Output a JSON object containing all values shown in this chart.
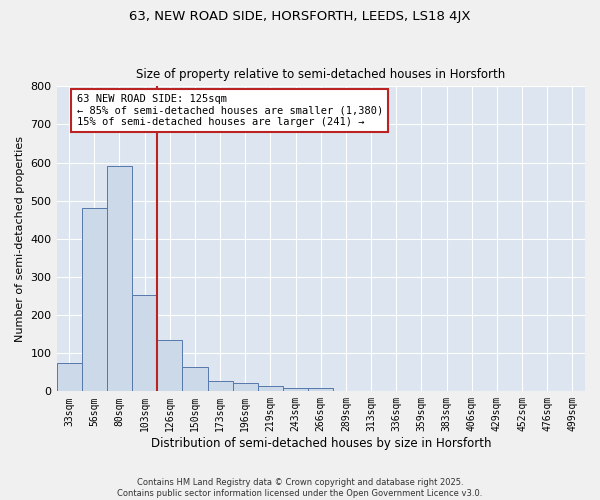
{
  "title1": "63, NEW ROAD SIDE, HORSFORTH, LEEDS, LS18 4JX",
  "title2": "Size of property relative to semi-detached houses in Horsforth",
  "xlabel": "Distribution of semi-detached houses by size in Horsforth",
  "ylabel": "Number of semi-detached properties",
  "categories": [
    "33sqm",
    "56sqm",
    "80sqm",
    "103sqm",
    "126sqm",
    "150sqm",
    "173sqm",
    "196sqm",
    "219sqm",
    "243sqm",
    "266sqm",
    "289sqm",
    "313sqm",
    "336sqm",
    "359sqm",
    "383sqm",
    "406sqm",
    "429sqm",
    "452sqm",
    "476sqm",
    "499sqm"
  ],
  "values": [
    75,
    480,
    590,
    253,
    135,
    65,
    28,
    22,
    13,
    10,
    10,
    0,
    0,
    0,
    0,
    0,
    0,
    0,
    0,
    0,
    0
  ],
  "bar_color": "#ccd9e8",
  "bar_edge_color": "#5577aa",
  "vline_color": "#bb2222",
  "annotation_line1": "63 NEW ROAD SIDE: 125sqm",
  "annotation_line2": "← 85% of semi-detached houses are smaller (1,380)",
  "annotation_line3": "15% of semi-detached houses are larger (241) →",
  "annotation_box_color": "#ffffff",
  "annotation_box_edge": "#bb2222",
  "ylim": [
    0,
    800
  ],
  "yticks": [
    0,
    100,
    200,
    300,
    400,
    500,
    600,
    700,
    800
  ],
  "background_color": "#dde6f0",
  "grid_color": "#ffffff",
  "fig_bg": "#f0f0f0",
  "footer1": "Contains HM Land Registry data © Crown copyright and database right 2025.",
  "footer2": "Contains public sector information licensed under the Open Government Licence v3.0."
}
